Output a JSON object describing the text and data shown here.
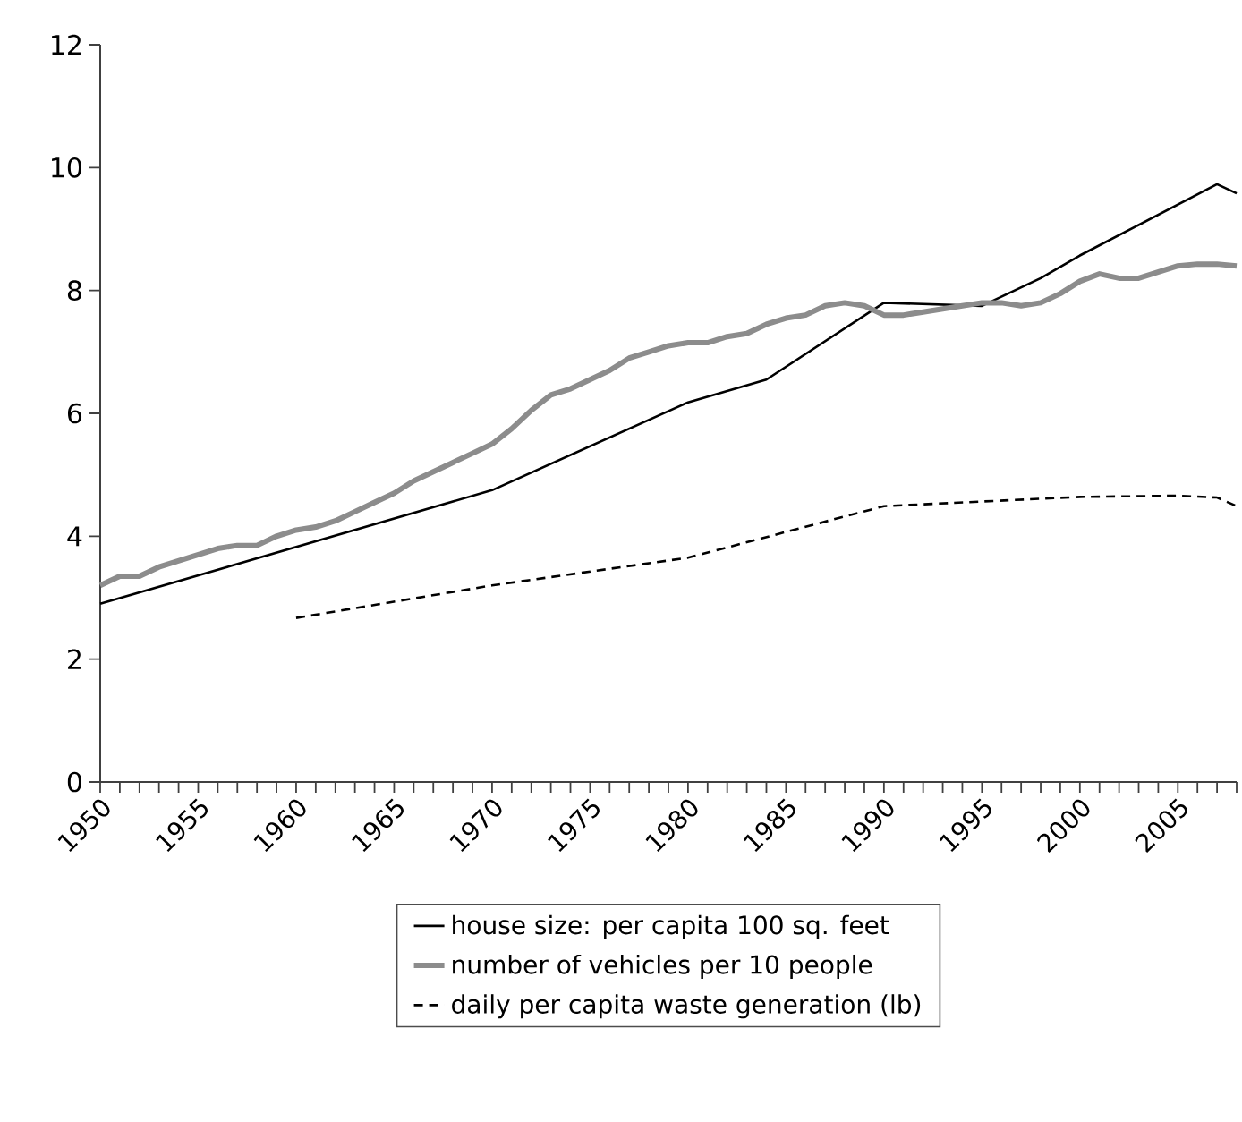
{
  "chart_data": {
    "type": "line",
    "xlim": [
      1950,
      2008
    ],
    "ylim": [
      0,
      12
    ],
    "xticks": [
      1950,
      {
        "value": 1951,
        "label": null
      },
      {
        "value": 1952,
        "label": null
      },
      {
        "value": 1953,
        "label": null
      },
      {
        "value": 1954,
        "label": null
      },
      1955,
      {
        "value": 1956,
        "label": null
      },
      {
        "value": 1957,
        "label": null
      },
      {
        "value": 1958,
        "label": null
      },
      {
        "value": 1959,
        "label": null
      },
      1960,
      {
        "value": 1961,
        "label": null
      },
      {
        "value": 1962,
        "label": null
      },
      {
        "value": 1963,
        "label": null
      },
      {
        "value": 1964,
        "label": null
      },
      1965,
      {
        "value": 1966,
        "label": null
      },
      {
        "value": 1967,
        "label": null
      },
      {
        "value": 1968,
        "label": null
      },
      {
        "value": 1969,
        "label": null
      },
      1970,
      {
        "value": 1971,
        "label": null
      },
      {
        "value": 1972,
        "label": null
      },
      {
        "value": 1973,
        "label": null
      },
      {
        "value": 1974,
        "label": null
      },
      1975,
      {
        "value": 1976,
        "label": null
      },
      {
        "value": 1977,
        "label": null
      },
      {
        "value": 1978,
        "label": null
      },
      {
        "value": 1979,
        "label": null
      },
      1980,
      {
        "value": 1981,
        "label": null
      },
      {
        "value": 1982,
        "label": null
      },
      {
        "value": 1983,
        "label": null
      },
      {
        "value": 1984,
        "label": null
      },
      1985,
      {
        "value": 1986,
        "label": null
      },
      {
        "value": 1987,
        "label": null
      },
      {
        "value": 1988,
        "label": null
      },
      {
        "value": 1989,
        "label": null
      },
      1990,
      {
        "value": 1991,
        "label": null
      },
      {
        "value": 1992,
        "label": null
      },
      {
        "value": 1993,
        "label": null
      },
      {
        "value": 1994,
        "label": null
      },
      1995,
      {
        "value": 1996,
        "label": null
      },
      {
        "value": 1997,
        "label": null
      },
      {
        "value": 1998,
        "label": null
      },
      {
        "value": 1999,
        "label": null
      },
      2000,
      {
        "value": 2001,
        "label": null
      },
      {
        "value": 2002,
        "label": null
      },
      {
        "value": 2003,
        "label": null
      },
      {
        "value": 2004,
        "label": null
      },
      2005,
      {
        "value": 2006,
        "label": null
      },
      {
        "value": 2007,
        "label": null
      },
      {
        "value": 2008,
        "label": null
      }
    ],
    "yticks": [
      0,
      2,
      4,
      6,
      8,
      10,
      12
    ],
    "grid": false,
    "legend": "bottom",
    "marker": "none",
    "series": [
      {
        "name": "house size: per capita 100 sq. feet",
        "color": "#000000",
        "line_style": "solid",
        "x": [
          1950,
          1970,
          1980,
          1984,
          1990,
          1995,
          1998,
          2000,
          2007,
          2008
        ],
        "values": [
          2.9,
          4.75,
          6.18,
          6.55,
          7.8,
          7.75,
          8.2,
          8.57,
          9.73,
          9.58
        ]
      },
      {
        "name": "number of vehicles per 10 people",
        "color": "#8c8c8c",
        "line_style": "solid",
        "x": [
          1950,
          1951,
          1952,
          1953,
          1954,
          1955,
          1956,
          1957,
          1958,
          1959,
          1960,
          1961,
          1962,
          1963,
          1964,
          1965,
          1966,
          1967,
          1968,
          1969,
          1970,
          1971,
          1972,
          1973,
          1974,
          1975,
          1976,
          1977,
          1978,
          1979,
          1980,
          1981,
          1982,
          1983,
          1984,
          1985,
          1986,
          1987,
          1988,
          1989,
          1990,
          1991,
          1992,
          1993,
          1994,
          1995,
          1996,
          1997,
          1998,
          1999,
          2000,
          2001,
          2002,
          2003,
          2004,
          2005,
          2006,
          2007,
          2008
        ],
        "values": [
          3.2,
          3.35,
          3.35,
          3.5,
          3.6,
          3.7,
          3.8,
          3.85,
          3.85,
          4.0,
          4.1,
          4.15,
          4.25,
          4.4,
          4.55,
          4.7,
          4.9,
          5.05,
          5.2,
          5.35,
          5.5,
          5.75,
          6.05,
          6.3,
          6.4,
          6.55,
          6.7,
          6.9,
          7.0,
          7.1,
          7.15,
          7.15,
          7.25,
          7.3,
          7.45,
          7.55,
          7.6,
          7.75,
          7.8,
          7.75,
          7.6,
          7.6,
          7.65,
          7.7,
          7.75,
          7.8,
          7.8,
          7.75,
          7.8,
          7.95,
          8.15,
          8.27,
          8.2,
          8.2,
          8.3,
          8.4,
          8.43,
          8.43,
          8.4
        ]
      },
      {
        "name": "daily per capita waste generation (lb)",
        "color": "#000000",
        "line_style": "dashed",
        "x": [
          1960,
          1970,
          1980,
          1990,
          2000,
          2005,
          2007,
          2008
        ],
        "values": [
          2.67,
          3.2,
          3.65,
          4.49,
          4.64,
          4.66,
          4.63,
          4.49
        ]
      }
    ]
  }
}
